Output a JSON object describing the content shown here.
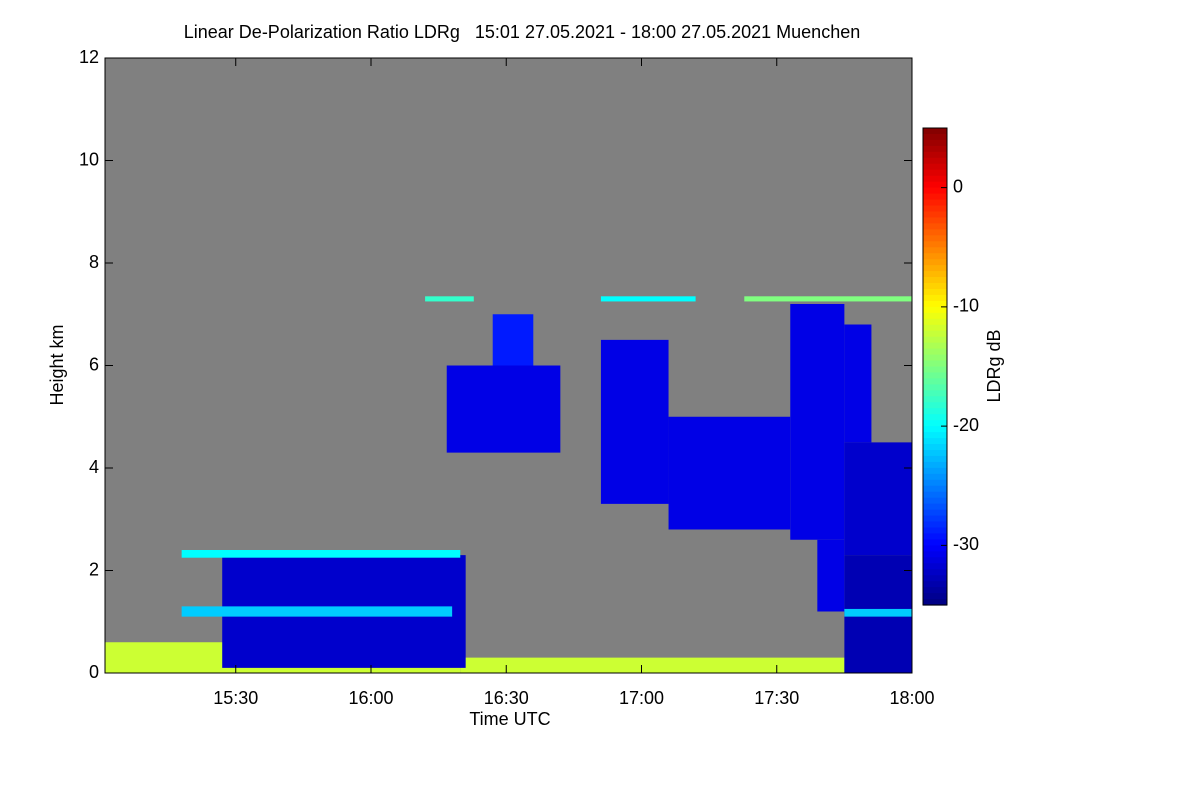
{
  "chart_data": {
    "type": "heatmap",
    "title": "Linear De-Polarization Ratio LDRg   15:01 27.05.2021 - 18:00 27.05.2021 Muenchen",
    "xlabel": "Time UTC",
    "ylabel": "Height km",
    "colorbar_label": "LDRg dB",
    "colormap": "jet",
    "background": "#808080",
    "xlim": [
      15.0167,
      18.0
    ],
    "xticks": [
      {
        "value": 15.5,
        "label": "15:30"
      },
      {
        "value": 16.0,
        "label": "16:00"
      },
      {
        "value": 16.5,
        "label": "16:30"
      },
      {
        "value": 17.0,
        "label": "17:00"
      },
      {
        "value": 17.5,
        "label": "17:30"
      },
      {
        "value": 18.0,
        "label": "18:00"
      }
    ],
    "ylim": [
      0,
      12
    ],
    "yticks": [
      0,
      2,
      4,
      6,
      8,
      10,
      12
    ],
    "clim": [
      -35,
      5
    ],
    "cticks": [
      0,
      -10,
      -20,
      -30
    ],
    "cells": [
      {
        "x": [
          15.0167,
          16.33
        ],
        "y": [
          0,
          0.6
        ],
        "value": -12
      },
      {
        "x": [
          16.33,
          17.75
        ],
        "y": [
          0,
          0.3
        ],
        "value": -12
      },
      {
        "x": [
          15.45,
          16.35
        ],
        "y": [
          0.1,
          2.3
        ],
        "value": -32
      },
      {
        "x": [
          15.3,
          16.3
        ],
        "y": [
          1.1,
          1.3
        ],
        "value": -22
      },
      {
        "x": [
          15.3,
          16.33
        ],
        "y": [
          2.25,
          2.4
        ],
        "value": -20
      },
      {
        "x": [
          17.75,
          18.0
        ],
        "y": [
          0,
          2.3
        ],
        "value": -33
      },
      {
        "x": [
          17.65,
          17.75
        ],
        "y": [
          1.2,
          2.6
        ],
        "value": -31
      },
      {
        "x": [
          17.75,
          18.0
        ],
        "y": [
          1.1,
          1.25
        ],
        "value": -22
      },
      {
        "x": [
          16.28,
          16.7
        ],
        "y": [
          4.3,
          6.0
        ],
        "value": -31
      },
      {
        "x": [
          16.45,
          16.6
        ],
        "y": [
          6.0,
          7.0
        ],
        "value": -29
      },
      {
        "x": [
          16.85,
          17.1
        ],
        "y": [
          3.3,
          6.5
        ],
        "value": -31
      },
      {
        "x": [
          17.1,
          17.55
        ],
        "y": [
          2.8,
          5.0
        ],
        "value": -31
      },
      {
        "x": [
          17.55,
          17.75
        ],
        "y": [
          2.6,
          7.2
        ],
        "value": -31
      },
      {
        "x": [
          17.75,
          18.0
        ],
        "y": [
          2.3,
          4.5
        ],
        "value": -32
      },
      {
        "x": [
          17.75,
          17.85
        ],
        "y": [
          4.5,
          6.8
        ],
        "value": -31
      },
      {
        "x": [
          16.2,
          16.38
        ],
        "y": [
          7.25,
          7.35
        ],
        "value": -18
      },
      {
        "x": [
          16.85,
          17.2
        ],
        "y": [
          7.25,
          7.35
        ],
        "value": -20
      },
      {
        "x": [
          17.38,
          18.0
        ],
        "y": [
          7.25,
          7.35
        ],
        "value": -15
      }
    ]
  }
}
